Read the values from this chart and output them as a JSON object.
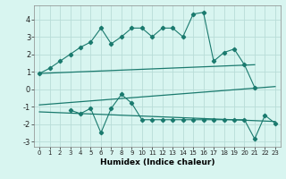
{
  "line1_x": [
    0,
    1,
    2,
    3,
    4,
    5,
    6,
    7,
    8,
    9,
    10,
    11,
    12,
    13,
    14,
    15,
    16,
    17,
    18,
    19,
    20,
    21
  ],
  "line1_y": [
    0.9,
    1.2,
    1.6,
    2.0,
    2.4,
    2.7,
    3.5,
    2.6,
    3.0,
    3.5,
    3.5,
    3.0,
    3.5,
    3.5,
    3.0,
    4.3,
    4.4,
    1.6,
    2.1,
    2.3,
    1.4,
    0.1
  ],
  "line2_x": [
    3,
    4,
    5,
    6,
    7,
    8,
    9,
    10,
    11,
    12,
    13,
    14,
    15,
    16,
    17,
    18,
    19,
    20,
    21,
    22,
    23
  ],
  "line2_y": [
    -1.2,
    -1.4,
    -1.1,
    -2.5,
    -1.1,
    -0.3,
    -0.8,
    -1.75,
    -1.75,
    -1.75,
    -1.75,
    -1.75,
    -1.75,
    -1.75,
    -1.75,
    -1.75,
    -1.75,
    -1.75,
    -2.85,
    -1.5,
    -1.95
  ],
  "line3_x": [
    0,
    21
  ],
  "line3_y": [
    0.9,
    1.4
  ],
  "line4_x": [
    0,
    23
  ],
  "line4_y": [
    -0.9,
    0.15
  ],
  "line5_x": [
    0,
    23
  ],
  "line5_y": [
    -1.3,
    -1.85
  ],
  "line_color": "#1a7a6e",
  "bg_color": "#d8f5f0",
  "grid_color": "#b8ddd8",
  "xlabel": "Humidex (Indice chaleur)",
  "xlim": [
    -0.5,
    23.5
  ],
  "ylim": [
    -3.3,
    4.8
  ],
  "yticks": [
    -3,
    -2,
    -1,
    0,
    1,
    2,
    3,
    4
  ],
  "xticks": [
    0,
    1,
    2,
    3,
    4,
    5,
    6,
    7,
    8,
    9,
    10,
    11,
    12,
    13,
    14,
    15,
    16,
    17,
    18,
    19,
    20,
    21,
    22,
    23
  ]
}
